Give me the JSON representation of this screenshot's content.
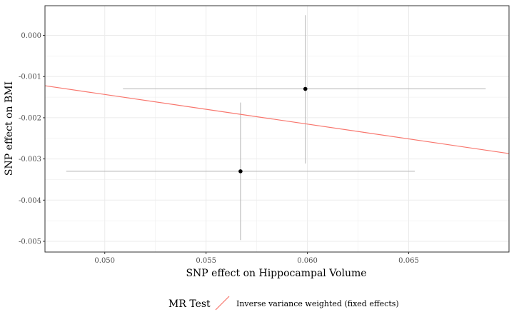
{
  "chart_data": {
    "type": "scatter",
    "xlabel": "SNP effect on Hippocampal Volume",
    "ylabel": "SNP effect on BMI",
    "xlim": [
      0.04705,
      0.06995
    ],
    "ylim": [
      -0.00526,
      0.00072
    ],
    "x_ticks": [
      0.05,
      0.055,
      0.06,
      0.065
    ],
    "x_tick_labels": [
      "0.050",
      "0.055",
      "0.060",
      "0.065"
    ],
    "y_ticks": [
      0.0,
      -0.001,
      -0.002,
      -0.003,
      -0.004,
      -0.005
    ],
    "y_tick_labels": [
      "0.000",
      "-0.001",
      "-0.002",
      "-0.003",
      "-0.004",
      "-0.005"
    ],
    "grid": true,
    "points": [
      {
        "x": 0.0599,
        "y": -0.0013,
        "x_err_low": 0.0509,
        "x_err_high": 0.0688,
        "y_err_low": -0.00311,
        "y_err_high": 0.00049
      },
      {
        "x": 0.0567,
        "y": -0.0033,
        "x_err_low": 0.0481,
        "x_err_high": 0.0653,
        "y_err_low": -0.00497,
        "y_err_high": -0.00163
      }
    ],
    "lines": [
      {
        "name": "Inverse variance weighted (fixed effects)",
        "intercept": 0.00216,
        "slope": -0.0719,
        "color": "#F8766D"
      }
    ],
    "colors": {
      "point": "#000000",
      "errorbar": "#b3b3b3",
      "grid": "#ebebeb",
      "panel_border": "#333333"
    },
    "legend": {
      "position": "bottom",
      "title": "MR Test",
      "entries": [
        "Inverse variance weighted (fixed effects)"
      ]
    }
  }
}
